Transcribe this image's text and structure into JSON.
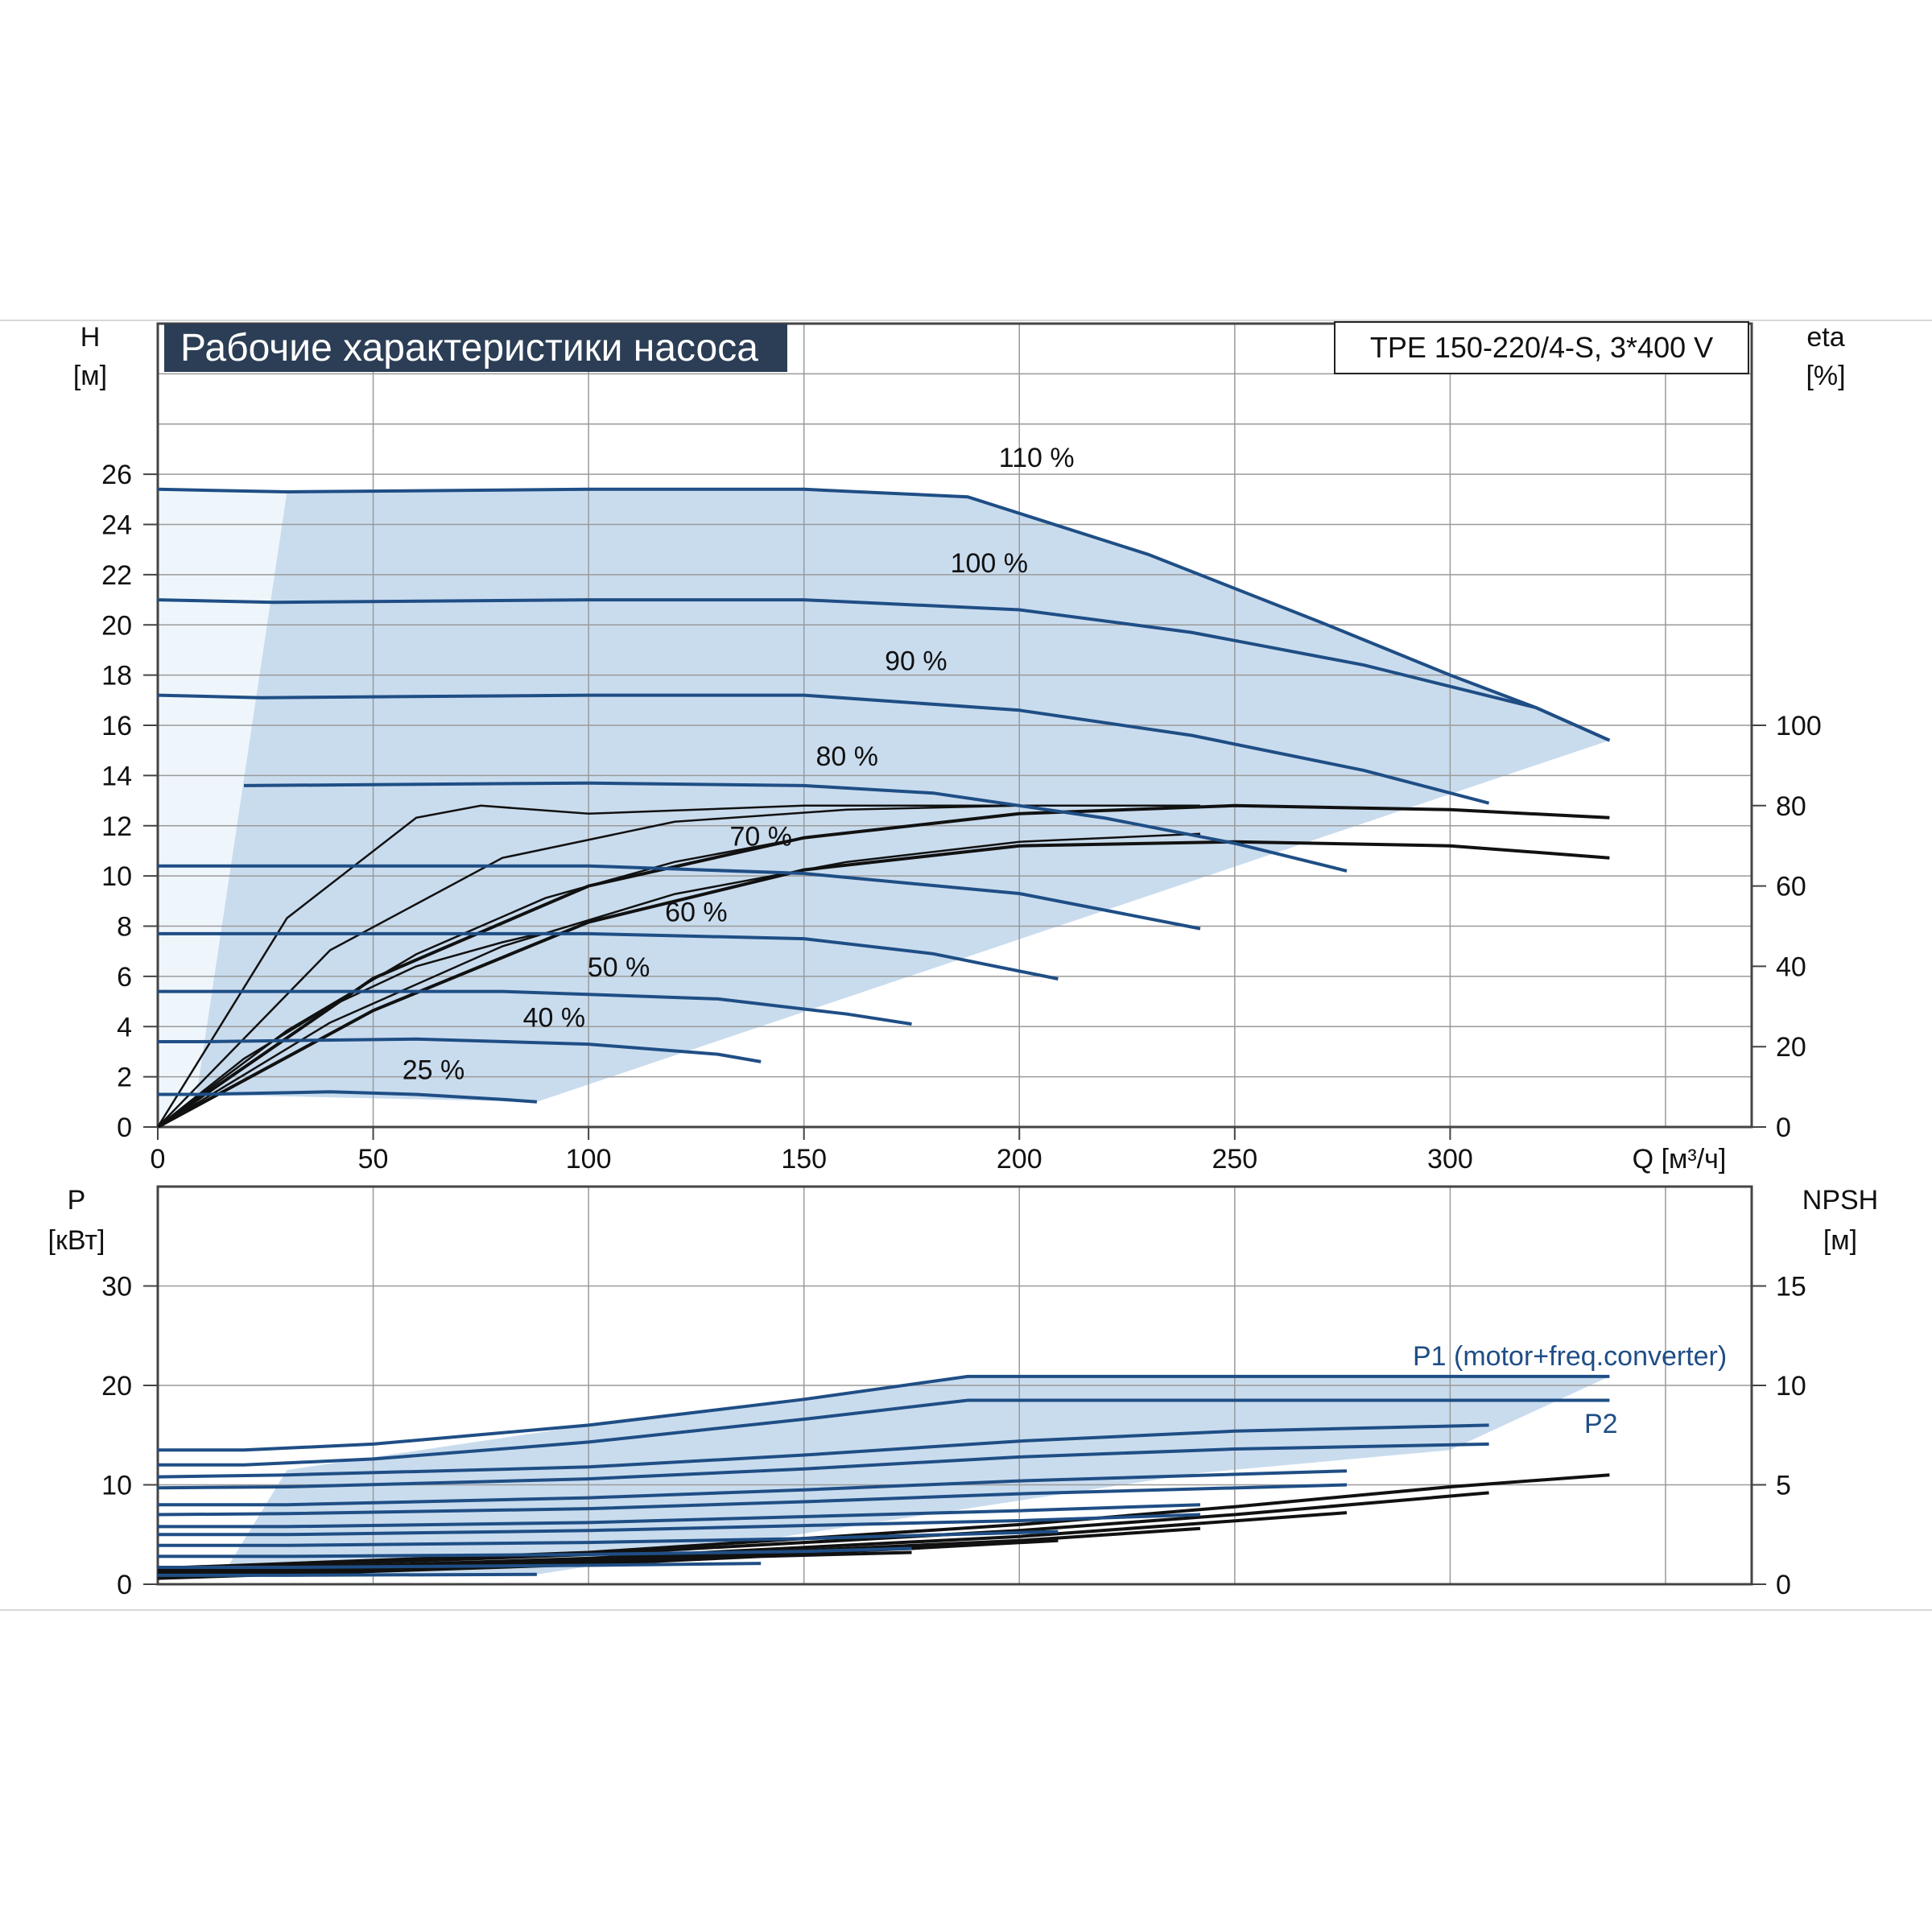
{
  "chart_data": [
    {
      "type": "line",
      "title": "Рабочие характеристики насоса",
      "model": "TPE 150-220/4-S, 3*400 V",
      "xlabel": "Q [м³/ч]",
      "ylabel": [
        "H",
        "[м]"
      ],
      "ylabel_right": [
        "eta",
        "[%]"
      ],
      "xlim": [
        0,
        370
      ],
      "ylim": [
        0,
        32
      ],
      "xticks": [
        "0",
        "50",
        "100",
        "150",
        "200",
        "250",
        "300"
      ],
      "yticks": [
        "0",
        "2",
        "4",
        "6",
        "8",
        "10",
        "12",
        "14",
        "16",
        "18",
        "20",
        "22",
        "24",
        "26"
      ],
      "yticks_right": [
        "0",
        "20",
        "40",
        "60",
        "80",
        "100"
      ],
      "grid": true,
      "colors": {
        "head": "#1f4e85",
        "eta": "#111111",
        "area": "#c9dcee",
        "area_light": "#eef6fc",
        "title_bg": "#2c3e55"
      },
      "series": [
        {
          "name": "110 %",
          "x": [
            0,
            30,
            100,
            150,
            188,
            230,
            270,
            300,
            320,
            337
          ],
          "y": [
            25.4,
            25.3,
            25.4,
            25.4,
            25.1,
            22.8,
            20.1,
            18.0,
            16.7,
            15.4
          ]
        },
        {
          "name": "100 %",
          "x": [
            0,
            27,
            100,
            150,
            200,
            240,
            280,
            320,
            337
          ],
          "y": [
            21.0,
            20.9,
            21.0,
            21.0,
            20.6,
            19.7,
            18.4,
            16.7,
            15.4
          ]
        },
        {
          "name": "90 %",
          "x": [
            0,
            24,
            100,
            150,
            200,
            240,
            280,
            309
          ],
          "y": [
            17.2,
            17.1,
            17.2,
            17.2,
            16.6,
            15.6,
            14.2,
            12.9
          ]
        },
        {
          "name": "80 %",
          "x": [
            20,
            100,
            150,
            180,
            220,
            250,
            276
          ],
          "y": [
            13.6,
            13.7,
            13.6,
            13.3,
            12.3,
            11.3,
            10.2
          ]
        },
        {
          "name": "70 %",
          "x": [
            0,
            17,
            100,
            150,
            200,
            242
          ],
          "y": [
            10.4,
            10.4,
            10.4,
            10.1,
            9.3,
            7.9
          ]
        },
        {
          "name": "60 %",
          "x": [
            0,
            15,
            100,
            150,
            180,
            209
          ],
          "y": [
            7.7,
            7.7,
            7.7,
            7.5,
            6.9,
            5.9
          ]
        },
        {
          "name": "50 %",
          "x": [
            0,
            12,
            80,
            130,
            160,
            175
          ],
          "y": [
            5.4,
            5.4,
            5.4,
            5.1,
            4.5,
            4.1
          ]
        },
        {
          "name": "40 %",
          "x": [
            0,
            10,
            60,
            100,
            130,
            140
          ],
          "y": [
            3.4,
            3.4,
            3.5,
            3.3,
            2.9,
            2.6
          ]
        },
        {
          "name": "25 %",
          "x": [
            0,
            10,
            40,
            60,
            80,
            88
          ],
          "y": [
            1.3,
            1.3,
            1.4,
            1.3,
            1.1,
            1.0
          ]
        }
      ],
      "eta_curves": [
        {
          "x": [
            0,
            50,
            100,
            150,
            200,
            250,
            300,
            337
          ],
          "y": [
            0,
            37,
            60,
            72,
            78,
            80,
            79,
            77
          ]
        },
        {
          "x": [
            0,
            50,
            100,
            150,
            200,
            250,
            300,
            337
          ],
          "y": [
            0,
            29,
            51,
            64,
            70,
            71,
            70,
            67
          ]
        },
        {
          "x": [
            0,
            30,
            60,
            75,
            100,
            150,
            200,
            242
          ],
          "y": [
            0,
            52,
            77,
            80,
            78,
            80,
            80,
            80
          ]
        },
        {
          "x": [
            0,
            40,
            80,
            120,
            160,
            200,
            242
          ],
          "y": [
            0,
            44,
            67,
            76,
            79,
            80,
            80
          ]
        },
        {
          "x": [
            0,
            40,
            80,
            120,
            160,
            200,
            242
          ],
          "y": [
            0,
            26,
            45,
            58,
            66,
            71,
            73
          ]
        },
        {
          "x": [
            0,
            30,
            60,
            90,
            120,
            150,
            175
          ],
          "y": [
            0,
            24,
            43,
            57,
            66,
            72,
            75
          ]
        },
        {
          "x": [
            0,
            20,
            40,
            60,
            80,
            88
          ],
          "y": [
            0,
            17,
            30,
            40,
            46,
            48
          ]
        }
      ]
    },
    {
      "type": "line",
      "ylabel": [
        "P",
        "[кВт]"
      ],
      "ylabel_right": [
        "NPSH",
        "[м]"
      ],
      "xlim": [
        0,
        370
      ],
      "ylim": [
        0,
        40
      ],
      "yticks": [
        "0",
        "10",
        "20",
        "30"
      ],
      "yticks_right": [
        "0",
        "5",
        "10",
        "15"
      ],
      "grid": true,
      "series": [
        {
          "name": "P1 (motor+freq.converter)",
          "x": [
            0,
            20,
            50,
            100,
            150,
            188,
            250,
            300,
            337
          ],
          "y": [
            13.5,
            13.5,
            14.1,
            16.0,
            18.6,
            20.9,
            20.9,
            20.9,
            20.9
          ]
        },
        {
          "name": "P2",
          "x": [
            0,
            20,
            50,
            100,
            150,
            188,
            250,
            300,
            337
          ],
          "y": [
            12.0,
            12.0,
            12.6,
            14.3,
            16.6,
            18.5,
            18.5,
            18.5,
            18.5
          ]
        },
        {
          "name": "",
          "x": [
            0,
            30,
            100,
            150,
            200,
            250,
            309
          ],
          "y": [
            10.8,
            11.0,
            11.8,
            13.0,
            14.4,
            15.4,
            16.0
          ]
        },
        {
          "name": "",
          "x": [
            0,
            30,
            100,
            150,
            200,
            250,
            309
          ],
          "y": [
            9.7,
            9.8,
            10.6,
            11.6,
            12.8,
            13.6,
            14.1
          ]
        },
        {
          "name": "",
          "x": [
            0,
            30,
            100,
            150,
            200,
            276
          ],
          "y": [
            8.0,
            8.0,
            8.7,
            9.5,
            10.4,
            11.4
          ]
        },
        {
          "name": "",
          "x": [
            0,
            30,
            100,
            150,
            200,
            276
          ],
          "y": [
            7.0,
            7.1,
            7.6,
            8.3,
            9.1,
            10.0
          ]
        },
        {
          "name": "",
          "x": [
            0,
            30,
            100,
            150,
            200,
            242
          ],
          "y": [
            5.8,
            5.8,
            6.2,
            6.8,
            7.4,
            8.0
          ]
        },
        {
          "name": "",
          "x": [
            0,
            30,
            100,
            150,
            200,
            242
          ],
          "y": [
            5.0,
            5.0,
            5.4,
            5.9,
            6.4,
            7.0
          ]
        },
        {
          "name": "",
          "x": [
            0,
            30,
            100,
            150,
            209
          ],
          "y": [
            3.9,
            3.9,
            4.2,
            4.6,
            5.3
          ]
        },
        {
          "name": "",
          "x": [
            0,
            30,
            100,
            150,
            175
          ],
          "y": [
            2.8,
            2.8,
            3.0,
            3.3,
            3.6
          ]
        },
        {
          "name": "",
          "x": [
            0,
            30,
            100,
            140
          ],
          "y": [
            1.7,
            1.7,
            1.9,
            2.1
          ]
        },
        {
          "name": "",
          "x": [
            0,
            30,
            88
          ],
          "y": [
            0.9,
            0.9,
            1.0
          ]
        }
      ],
      "npsh_curves": [
        {
          "x": [
            0,
            100,
            200,
            250,
            300,
            337
          ],
          "y": [
            0.8,
            1.6,
            3.0,
            3.9,
            4.9,
            5.5
          ]
        },
        {
          "x": [
            0,
            100,
            200,
            250,
            309
          ],
          "y": [
            0.7,
            1.5,
            2.7,
            3.5,
            4.6
          ]
        },
        {
          "x": [
            0,
            100,
            200,
            276
          ],
          "y": [
            0.6,
            1.3,
            2.4,
            3.6
          ]
        },
        {
          "x": [
            0,
            100,
            200,
            242
          ],
          "y": [
            0.5,
            1.2,
            2.2,
            2.8
          ]
        },
        {
          "x": [
            0,
            100,
            175,
            209
          ],
          "y": [
            0.4,
            1.1,
            1.8,
            2.2
          ]
        },
        {
          "x": [
            0,
            100,
            140,
            175
          ],
          "y": [
            0.3,
            1.0,
            1.4,
            1.6
          ]
        }
      ]
    }
  ]
}
